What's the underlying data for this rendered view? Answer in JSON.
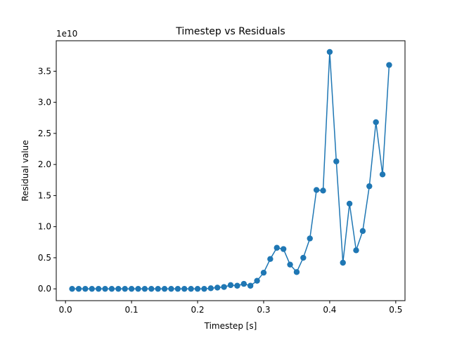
{
  "chart_data": {
    "type": "line",
    "title": "Timestep vs Residuals",
    "xlabel": "Timestep [s]",
    "ylabel": "Residual value",
    "y_offset_label": "1e10",
    "xlim": [
      -0.014,
      0.514
    ],
    "ylim": [
      -0.19,
      3.99
    ],
    "x_ticks": [
      0.0,
      0.1,
      0.2,
      0.3,
      0.4,
      0.5
    ],
    "x_tick_labels": [
      "0.0",
      "0.1",
      "0.2",
      "0.3",
      "0.4",
      "0.5"
    ],
    "y_ticks": [
      0.0,
      0.5,
      1.0,
      1.5,
      2.0,
      2.5,
      3.0,
      3.5
    ],
    "y_tick_labels": [
      "0.0",
      "0.5",
      "1.0",
      "1.5",
      "2.0",
      "2.5",
      "3.0",
      "3.5"
    ],
    "grid": false,
    "legend": null,
    "series": [
      {
        "color": "#1f77b4",
        "marker": "circle",
        "x": [
          0.01,
          0.02,
          0.03,
          0.04,
          0.05,
          0.06,
          0.07,
          0.08,
          0.09,
          0.1,
          0.11,
          0.12,
          0.13,
          0.14,
          0.15,
          0.16,
          0.17,
          0.18,
          0.19,
          0.2,
          0.21,
          0.22,
          0.23,
          0.24,
          0.25,
          0.26,
          0.27,
          0.28,
          0.29,
          0.3,
          0.31,
          0.32,
          0.33,
          0.34,
          0.35,
          0.36,
          0.37,
          0.38,
          0.39,
          0.4,
          0.41,
          0.42,
          0.43,
          0.44,
          0.45,
          0.46,
          0.47,
          0.48,
          0.49
        ],
        "values": [
          0.0,
          0.0,
          0.0,
          0.0,
          0.0,
          0.0,
          0.0,
          0.0,
          0.0,
          0.0,
          0.0,
          0.0,
          0.0,
          0.0,
          0.0,
          0.0,
          0.0,
          0.0,
          0.0,
          0.0,
          0.0,
          0.01,
          0.02,
          0.03,
          0.06,
          0.05,
          0.08,
          0.05,
          0.13,
          0.26,
          0.48,
          0.66,
          0.64,
          0.39,
          0.27,
          0.5,
          0.81,
          1.59,
          1.58,
          3.81,
          2.05,
          0.42,
          1.37,
          0.62,
          0.93,
          1.65,
          2.68,
          1.84,
          3.6
        ]
      }
    ]
  }
}
